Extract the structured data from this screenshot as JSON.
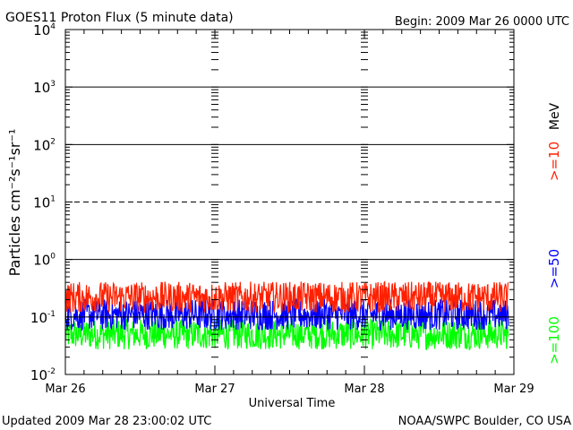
{
  "header": {
    "title": "GOES11 Proton Flux (5 minute data)",
    "begin": "Begin: 2009 Mar 26 0000 UTC"
  },
  "footer": {
    "updated": "Updated 2009 Mar 28 23:00:02 UTC",
    "source": "NOAA/SWPC Boulder, CO USA"
  },
  "chart_data": {
    "type": "line",
    "title": "GOES11 Proton Flux (5 minute data)",
    "xlabel": "Universal Time",
    "ylabel": "Particles cm⁻²s⁻¹sr⁻¹",
    "yscale": "log",
    "ylim": [
      0.01,
      10000
    ],
    "xlim": [
      "2009-03-26 00:00",
      "2009-03-29 00:00"
    ],
    "x_ticks": [
      "Mar 26",
      "Mar 27",
      "Mar 28",
      "Mar 29"
    ],
    "y_ticks": [
      {
        "base": "10",
        "exp": "4"
      },
      {
        "base": "10",
        "exp": "3"
      },
      {
        "base": "10",
        "exp": "2"
      },
      {
        "base": "10",
        "exp": "1"
      },
      {
        "base": "10",
        "exp": "0"
      },
      {
        "base": "10",
        "exp": "-1"
      },
      {
        "base": "10",
        "exp": "-2"
      }
    ],
    "unit_label": "MeV",
    "series": [
      {
        "name": ">=10",
        "color": "#ff2000",
        "approx_range": [
          0.12,
          0.5
        ],
        "typical": 0.22
      },
      {
        "name": ">=50",
        "color": "#0000ff",
        "approx_range": [
          0.06,
          0.25
        ],
        "typical": 0.11
      },
      {
        "name": ">=100",
        "color": "#00ff00",
        "approx_range": [
          0.025,
          0.1
        ],
        "typical": 0.05
      }
    ],
    "reference_lines": [
      {
        "value": 1000,
        "style": "solid"
      },
      {
        "value": 100,
        "style": "solid"
      },
      {
        "value": 10,
        "style": "dashed"
      },
      {
        "value": 1,
        "style": "solid"
      },
      {
        "value": 0.1,
        "style": "solid"
      }
    ],
    "grid": false
  }
}
